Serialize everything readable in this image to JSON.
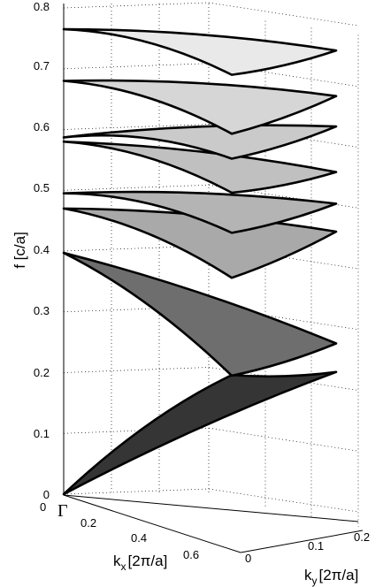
{
  "chart_data": {
    "type": "surface",
    "zlabel": "f [c/a]",
    "xlabel_base": "k",
    "xlabel_sub": "x",
    "xlabel_unit": "[2π/a]",
    "ylabel_base": "k",
    "ylabel_sub": "y",
    "ylabel_unit": "[2π/a]",
    "gamma_label": "Γ",
    "z_ticks": [
      "0",
      "0.1",
      "0.2",
      "0.3",
      "0.4",
      "0.5",
      "0.6",
      "0.7",
      "0.8"
    ],
    "x_ticks": [
      "0",
      "0.2",
      "0.4",
      "0.6"
    ],
    "y_ticks": [
      "0",
      "0.1",
      "0.2"
    ],
    "zlim": [
      0,
      0.8
    ],
    "grid": true,
    "bands": [
      {
        "gamma": 0.0,
        "X": 0.201,
        "M": 0.196,
        "fill": "#353535"
      },
      {
        "gamma": 0.397,
        "X": 0.248,
        "M": 0.195,
        "fill": "#6e6e6e"
      },
      {
        "gamma": 0.47,
        "X": 0.432,
        "M": 0.356,
        "fill": "#a9a9a9"
      },
      {
        "gamma": 0.495,
        "X": 0.478,
        "M": 0.43,
        "fill": "#b4b4b4"
      },
      {
        "gamma": 0.58,
        "X": 0.53,
        "M": 0.496,
        "fill": "#c0c0c0"
      },
      {
        "gamma": 0.587,
        "X": 0.605,
        "M": 0.552,
        "fill": "#cacaca"
      },
      {
        "gamma": 0.68,
        "X": 0.655,
        "M": 0.593,
        "fill": "#d6d6d6"
      },
      {
        "gamma": 0.765,
        "X": 0.73,
        "M": 0.69,
        "fill": "#e9e9e9"
      }
    ]
  }
}
